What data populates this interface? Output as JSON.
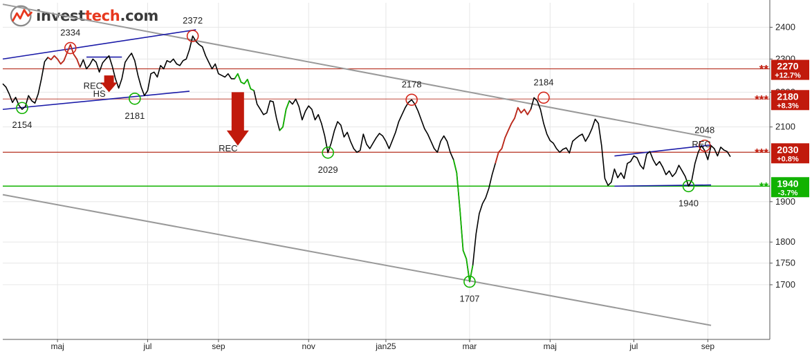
{
  "brand": {
    "name_part1": "invest",
    "name_part2": "tech",
    "name_part3": ".com"
  },
  "colors": {
    "price_line": "#000000",
    "price_up": "#c0281a",
    "price_down": "#11b200",
    "resistance": "#b52e1e",
    "support": "#11b200",
    "trend_channel": "#999999",
    "short_channel": "#1b1ba8",
    "sell_arrow": "#c11a0c",
    "grid": "#e6e6e6"
  },
  "chart_data": {
    "type": "line",
    "y_scale": "log",
    "ylim": [
      1580,
      2480
    ],
    "y_ticks": [
      1700,
      1750,
      1800,
      1900,
      2100,
      2200,
      2300,
      2400
    ],
    "x_ticks": [
      "maj",
      "jul",
      "sep",
      "nov",
      "jan25",
      "mar",
      "maj",
      "jul",
      "sep"
    ],
    "grid": true,
    "series": [
      {
        "values": [
          2225,
          2215,
          2195,
          2170,
          2185,
          2162,
          2150,
          2158,
          2190,
          2175,
          2168,
          2195,
          2240,
          2292,
          2305,
          2298,
          2310,
          2300,
          2285,
          2295,
          2320,
          2345,
          2315,
          2300,
          2275,
          2298,
          2270,
          2282,
          2300,
          2290,
          2260,
          2288,
          2300,
          2310,
          2278,
          2240,
          2212,
          2240,
          2290,
          2305,
          2318,
          2295,
          2250,
          2215,
          2190,
          2205,
          2255,
          2260,
          2245,
          2280,
          2270,
          2295,
          2290,
          2300,
          2285,
          2280,
          2295,
          2300,
          2330,
          2372,
          2355,
          2345,
          2338,
          2310,
          2290,
          2270,
          2285,
          2255,
          2250,
          2245,
          2255,
          2240,
          2240,
          2255,
          2230,
          2225,
          2238,
          2210,
          2205,
          2165,
          2150,
          2135,
          2140,
          2175,
          2172,
          2125,
          2090,
          2100,
          2150,
          2175,
          2165,
          2180,
          2158,
          2120,
          2145,
          2160,
          2150,
          2120,
          2135,
          2110,
          2075,
          2029,
          2055,
          2090,
          2115,
          2105,
          2072,
          2085,
          2060,
          2040,
          2030,
          2035,
          2080,
          2052,
          2040,
          2055,
          2070,
          2082,
          2075,
          2060,
          2040,
          2062,
          2085,
          2115,
          2135,
          2155,
          2170,
          2178,
          2165,
          2145,
          2120,
          2095,
          2080,
          2060,
          2040,
          2030,
          2060,
          2075,
          2060,
          2030,
          2010,
          1975,
          1880,
          1780,
          1760,
          1707,
          1745,
          1820,
          1870,
          1895,
          1910,
          1935,
          1970,
          2000,
          2030,
          2040,
          2070,
          2090,
          2110,
          2125,
          2155,
          2140,
          2150,
          2135,
          2150,
          2184,
          2175,
          2150,
          2110,
          2080,
          2062,
          2055,
          2040,
          2030,
          2038,
          2042,
          2028,
          2060,
          2068,
          2075,
          2080,
          2060,
          2075,
          2095,
          2122,
          2110,
          2048,
          1960,
          1942,
          1950,
          1985,
          1962,
          1975,
          1960,
          2000,
          2005,
          2020,
          2015,
          1995,
          1985,
          2025,
          2032,
          2010,
          1995,
          2005,
          1990,
          1970,
          1980,
          1965,
          1975,
          1995,
          1980,
          1965,
          1940,
          1955,
          2000,
          2030,
          2048,
          2035,
          2010,
          2048,
          2040,
          2020,
          2044,
          2036,
          2032,
          2018
        ]
      }
    ],
    "horizontal_levels": [
      {
        "value": 2270,
        "kind": "resistance",
        "stars": "**",
        "price_label": "2270",
        "pct_label": "+12.7%"
      },
      {
        "value": 2180,
        "kind": "resistance",
        "stars": "***",
        "price_label": "2180",
        "pct_label": "+8.3%"
      },
      {
        "value": 2030,
        "kind": "resistance",
        "stars": "***",
        "price_label": "2030",
        "pct_label": "+0.8%"
      },
      {
        "value": 1940,
        "kind": "support",
        "stars": "**",
        "price_label": "1940",
        "pct_label": "-3.7%"
      }
    ],
    "trend_lines": [
      {
        "kind": "trend_channel",
        "x0": 0,
        "y0": 2475,
        "x1": 220,
        "y1": 2070
      },
      {
        "kind": "trend_channel",
        "x0": 0,
        "y0": 1918,
        "x1": 220,
        "y1": 1610
      },
      {
        "kind": "short_channel",
        "x0": 0,
        "y0": 2300,
        "x1": 60,
        "y1": 2392
      },
      {
        "kind": "short_channel",
        "x0": 0,
        "y0": 2150,
        "x1": 58,
        "y1": 2203
      },
      {
        "kind": "short_channel",
        "x0": 26,
        "y0": 2306,
        "x1": 37,
        "y1": 2306
      },
      {
        "kind": "short_channel",
        "x0": 190,
        "y0": 2020,
        "x1": 220,
        "y1": 2050
      },
      {
        "kind": "short_channel",
        "x0": 190,
        "y0": 1940,
        "x1": 220,
        "y1": 1943
      }
    ],
    "pivot_points": [
      {
        "x": 6,
        "value": 2154,
        "type": "low",
        "label": "2154"
      },
      {
        "x": 21,
        "value": 2334,
        "type": "high",
        "label": "2334"
      },
      {
        "x": 41,
        "value": 2181,
        "type": "low",
        "label": "2181"
      },
      {
        "x": 59,
        "value": 2372,
        "type": "high",
        "label": "2372"
      },
      {
        "x": 101,
        "value": 2029,
        "type": "low",
        "label": "2029"
      },
      {
        "x": 127,
        "value": 2178,
        "type": "high",
        "label": "2178"
      },
      {
        "x": 145,
        "value": 1707,
        "type": "low",
        "label": "1707"
      },
      {
        "x": 168,
        "value": 2184,
        "type": "high",
        "label": "2184"
      },
      {
        "x": 213,
        "value": 1940,
        "type": "low",
        "label": "1940"
      },
      {
        "x": 218,
        "value": 2048,
        "type": "high",
        "label": "2048"
      }
    ],
    "annotations": [
      {
        "text": "REC",
        "x": 28,
        "value": 2210
      },
      {
        "text": "HS",
        "x": 30,
        "value": 2187
      },
      {
        "text": "REC",
        "x": 70,
        "value": 2032
      },
      {
        "text": "REC",
        "x": 217,
        "value": 2044
      }
    ],
    "signal_arrows": [
      {
        "x": 33,
        "value_from": 2250,
        "value_to": 2200,
        "direction": "down",
        "size": "small"
      },
      {
        "x": 73,
        "value_from": 2200,
        "value_to": 2048,
        "direction": "down",
        "size": "large"
      }
    ]
  }
}
